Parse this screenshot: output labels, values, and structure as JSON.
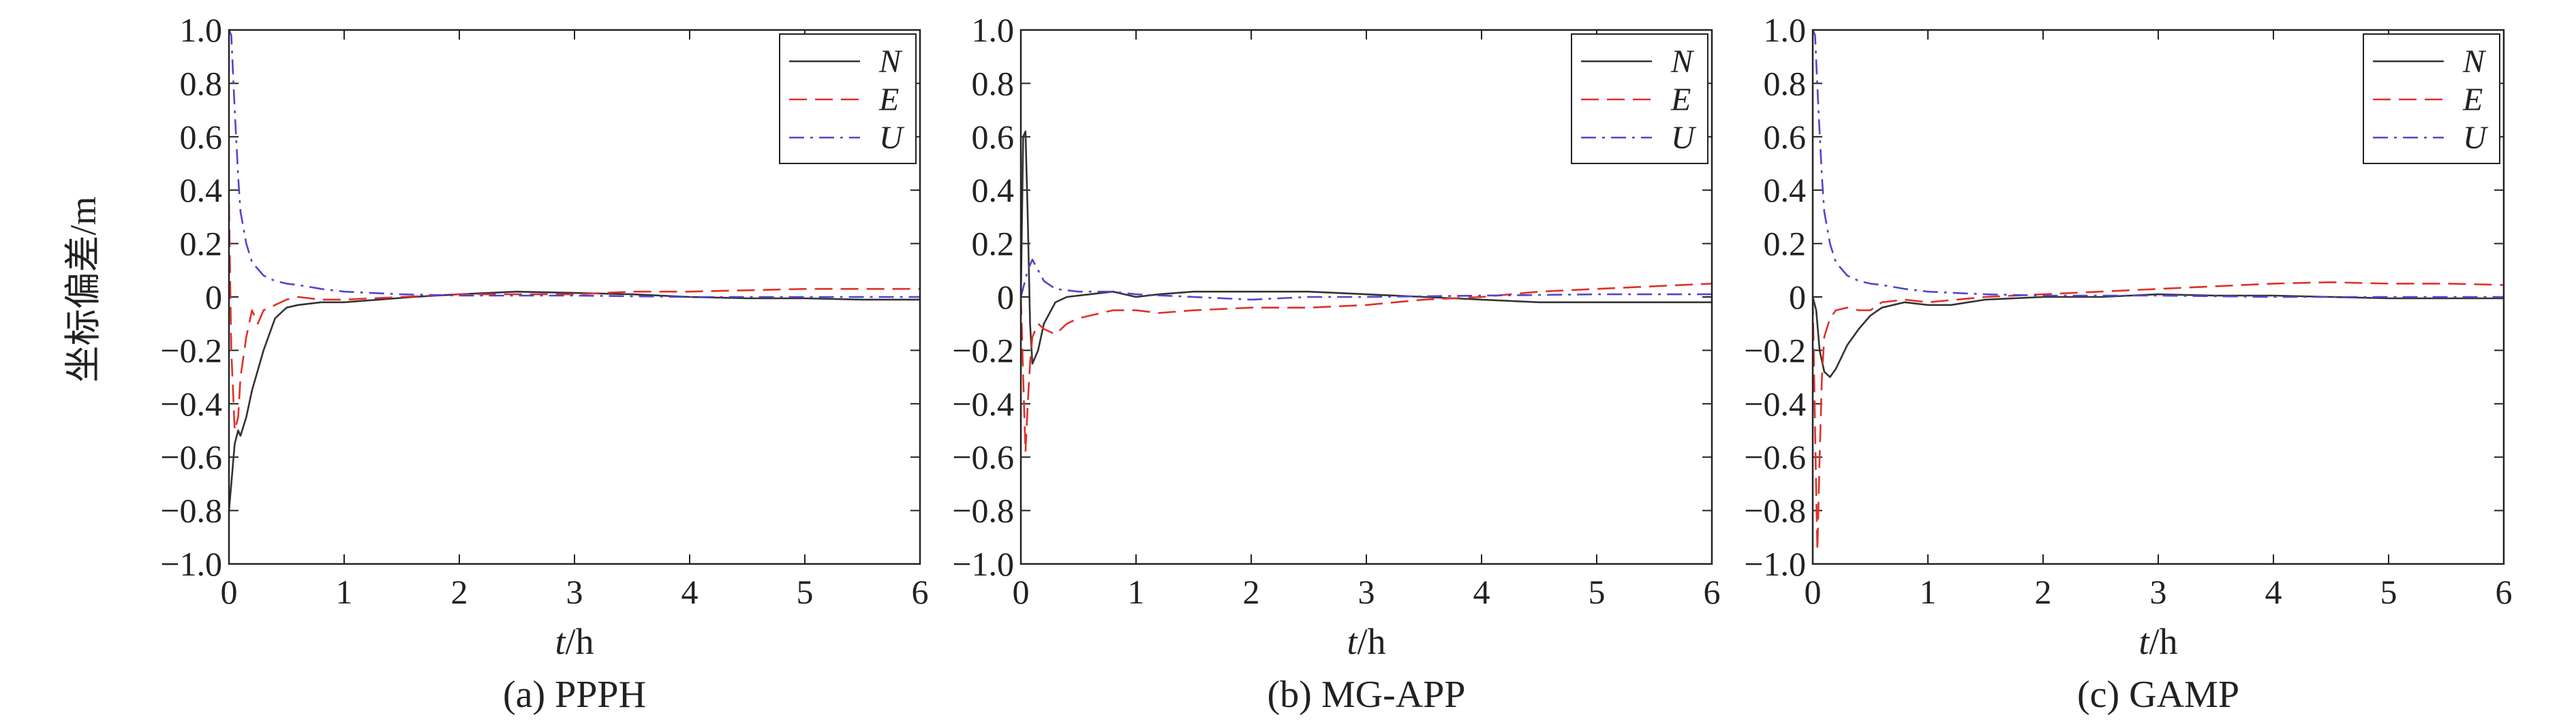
{
  "figure": {
    "ylabel": "坐标偏差/m",
    "xlabel_var": "t",
    "xlabel_unit": "/h"
  },
  "colors": {
    "N": "#333333",
    "E": "#e0302a",
    "U": "#5544cc"
  },
  "chart_data": [
    {
      "type": "line",
      "caption": "(a) PPPH",
      "xlim": [
        0,
        6
      ],
      "ylim": [
        -1.0,
        1.0
      ],
      "xticks": [
        0,
        1,
        2,
        3,
        4,
        5,
        6
      ],
      "yticks": [
        1.0,
        0.8,
        0.6,
        0.4,
        0.2,
        0,
        -0.2,
        -0.4,
        -0.6,
        -0.8,
        -1.0
      ],
      "ytick_labels": [
        "1.0",
        "0.8",
        "0.6",
        "0.4",
        "0.2",
        "0",
        "−0.2",
        "−0.4",
        "−0.6",
        "−0.8",
        "−1.0"
      ],
      "legend": "top-right",
      "series": [
        {
          "name": "N",
          "style": "solid",
          "x": [
            0,
            0.02,
            0.05,
            0.08,
            0.1,
            0.15,
            0.2,
            0.3,
            0.4,
            0.5,
            0.6,
            0.8,
            1.0,
            1.3,
            1.6,
            2.0,
            2.5,
            3.0,
            3.5,
            4.0,
            4.5,
            5.0,
            5.5,
            6.0
          ],
          "y": [
            -0.8,
            -0.7,
            -0.55,
            -0.5,
            -0.52,
            -0.45,
            -0.35,
            -0.2,
            -0.08,
            -0.04,
            -0.03,
            -0.02,
            -0.02,
            -0.01,
            0.0,
            0.01,
            0.02,
            0.015,
            0.01,
            0.0,
            -0.005,
            -0.005,
            -0.01,
            -0.01
          ]
        },
        {
          "name": "E",
          "style": "dashed",
          "x": [
            0,
            0.02,
            0.05,
            0.08,
            0.1,
            0.15,
            0.2,
            0.25,
            0.3,
            0.4,
            0.5,
            0.6,
            0.8,
            1.0,
            1.5,
            2.0,
            3.0,
            3.5,
            4.0,
            5.0,
            6.0
          ],
          "y": [
            0.35,
            -0.2,
            -0.5,
            -0.45,
            -0.3,
            -0.15,
            -0.05,
            -0.1,
            -0.05,
            -0.03,
            -0.01,
            0.0,
            -0.01,
            -0.01,
            0.0,
            0.01,
            0.01,
            0.02,
            0.02,
            0.03,
            0.03
          ]
        },
        {
          "name": "U",
          "style": "dashdot",
          "x": [
            0,
            0.02,
            0.05,
            0.08,
            0.1,
            0.15,
            0.2,
            0.3,
            0.4,
            0.5,
            0.6,
            0.8,
            1.0,
            1.5,
            2.0,
            2.5,
            3.0,
            4.0,
            5.0,
            6.0
          ],
          "y": [
            1.0,
            0.98,
            0.7,
            0.45,
            0.32,
            0.2,
            0.13,
            0.08,
            0.06,
            0.05,
            0.045,
            0.03,
            0.02,
            0.01,
            0.005,
            0.005,
            0.005,
            0.0,
            0.0,
            0.0
          ]
        }
      ]
    },
    {
      "type": "line",
      "caption": "(b) MG-APP",
      "xlim": [
        0,
        6
      ],
      "ylim": [
        -1.0,
        1.0
      ],
      "xticks": [
        0,
        1,
        2,
        3,
        4,
        5,
        6
      ],
      "yticks": [
        1.0,
        0.8,
        0.6,
        0.4,
        0.2,
        0,
        -0.2,
        -0.4,
        -0.6,
        -0.8,
        -1.0
      ],
      "ytick_labels": [
        "1.0",
        "0.8",
        "0.6",
        "0.4",
        "0.2",
        "0",
        "−0.2",
        "−0.4",
        "−0.6",
        "−0.8",
        "−1.0"
      ],
      "legend": "top-right",
      "series": [
        {
          "name": "N",
          "style": "solid",
          "x": [
            0,
            0.02,
            0.04,
            0.06,
            0.08,
            0.1,
            0.15,
            0.2,
            0.3,
            0.4,
            0.6,
            0.8,
            1.0,
            1.2,
            1.5,
            2.0,
            2.5,
            3.0,
            3.5,
            4.0,
            4.5,
            5.0,
            5.5,
            6.0
          ],
          "y": [
            0.0,
            0.6,
            0.62,
            0.3,
            -0.1,
            -0.25,
            -0.2,
            -0.1,
            -0.02,
            0.0,
            0.01,
            0.02,
            0.0,
            0.01,
            0.02,
            0.02,
            0.02,
            0.01,
            0.0,
            -0.01,
            -0.02,
            -0.02,
            -0.02,
            -0.02
          ]
        },
        {
          "name": "E",
          "style": "dashed",
          "x": [
            0,
            0.02,
            0.04,
            0.06,
            0.08,
            0.1,
            0.15,
            0.2,
            0.3,
            0.4,
            0.5,
            0.6,
            0.8,
            1.0,
            1.2,
            1.5,
            2.0,
            2.5,
            3.0,
            3.5,
            4.0,
            4.5,
            5.0,
            5.5,
            6.0
          ],
          "y": [
            0.0,
            -0.3,
            -0.58,
            -0.4,
            -0.25,
            -0.15,
            -0.1,
            -0.12,
            -0.14,
            -0.1,
            -0.08,
            -0.07,
            -0.05,
            -0.05,
            -0.06,
            -0.05,
            -0.04,
            -0.04,
            -0.03,
            -0.01,
            0.0,
            0.02,
            0.03,
            0.04,
            0.05
          ]
        },
        {
          "name": "U",
          "style": "dashdot",
          "x": [
            0,
            0.03,
            0.06,
            0.1,
            0.15,
            0.2,
            0.3,
            0.5,
            0.8,
            1.0,
            1.5,
            2.0,
            2.5,
            3.0,
            4.0,
            5.0,
            6.0
          ],
          "y": [
            0.0,
            0.05,
            0.1,
            0.14,
            0.1,
            0.06,
            0.03,
            0.02,
            0.02,
            0.01,
            0.0,
            -0.01,
            0.0,
            0.0,
            0.005,
            0.01,
            0.01
          ]
        }
      ]
    },
    {
      "type": "line",
      "caption": "(c) GAMP",
      "xlim": [
        0,
        6
      ],
      "ylim": [
        -1.0,
        1.0
      ],
      "xticks": [
        0,
        1,
        2,
        3,
        4,
        5,
        6
      ],
      "yticks": [
        1.0,
        0.8,
        0.6,
        0.4,
        0.2,
        0,
        -0.2,
        -0.4,
        -0.6,
        -0.8,
        -1.0
      ],
      "ytick_labels": [
        "1.0",
        "0.8",
        "0.6",
        "0.4",
        "0.2",
        "0",
        "−0.2",
        "−0.4",
        "−0.6",
        "−0.8",
        "−1.0"
      ],
      "legend": "top-right",
      "series": [
        {
          "name": "N",
          "style": "solid",
          "x": [
            0,
            0.03,
            0.06,
            0.1,
            0.15,
            0.2,
            0.3,
            0.4,
            0.5,
            0.6,
            0.8,
            1.0,
            1.2,
            1.5,
            2.0,
            2.5,
            3.0,
            3.5,
            4.0,
            4.5,
            5.0,
            5.5,
            6.0
          ],
          "y": [
            0.0,
            -0.05,
            -0.2,
            -0.28,
            -0.3,
            -0.27,
            -0.18,
            -0.12,
            -0.07,
            -0.04,
            -0.02,
            -0.03,
            -0.03,
            -0.01,
            0.0,
            0.0,
            0.01,
            0.005,
            0.005,
            0.0,
            -0.005,
            -0.005,
            -0.005
          ]
        },
        {
          "name": "E",
          "style": "dashed",
          "x": [
            0,
            0.02,
            0.04,
            0.06,
            0.08,
            0.1,
            0.15,
            0.2,
            0.3,
            0.4,
            0.5,
            0.6,
            0.8,
            1.0,
            1.5,
            2.0,
            2.5,
            3.0,
            3.5,
            4.0,
            4.5,
            5.0,
            5.5,
            6.0
          ],
          "y": [
            0.0,
            -0.5,
            -0.95,
            -0.6,
            -0.3,
            -0.15,
            -0.08,
            -0.05,
            -0.04,
            -0.05,
            -0.05,
            -0.02,
            -0.01,
            -0.02,
            0.0,
            0.01,
            0.02,
            0.03,
            0.04,
            0.05,
            0.055,
            0.05,
            0.05,
            0.045
          ]
        },
        {
          "name": "U",
          "style": "dashdot",
          "x": [
            0,
            0.02,
            0.05,
            0.08,
            0.1,
            0.15,
            0.2,
            0.3,
            0.4,
            0.5,
            0.6,
            0.8,
            1.0,
            1.5,
            2.0,
            2.5,
            3.0,
            4.0,
            5.0,
            6.0
          ],
          "y": [
            1.0,
            0.98,
            0.7,
            0.45,
            0.32,
            0.2,
            0.13,
            0.08,
            0.06,
            0.05,
            0.045,
            0.03,
            0.02,
            0.01,
            0.005,
            0.005,
            0.005,
            0.0,
            0.0,
            0.0
          ]
        }
      ]
    }
  ]
}
